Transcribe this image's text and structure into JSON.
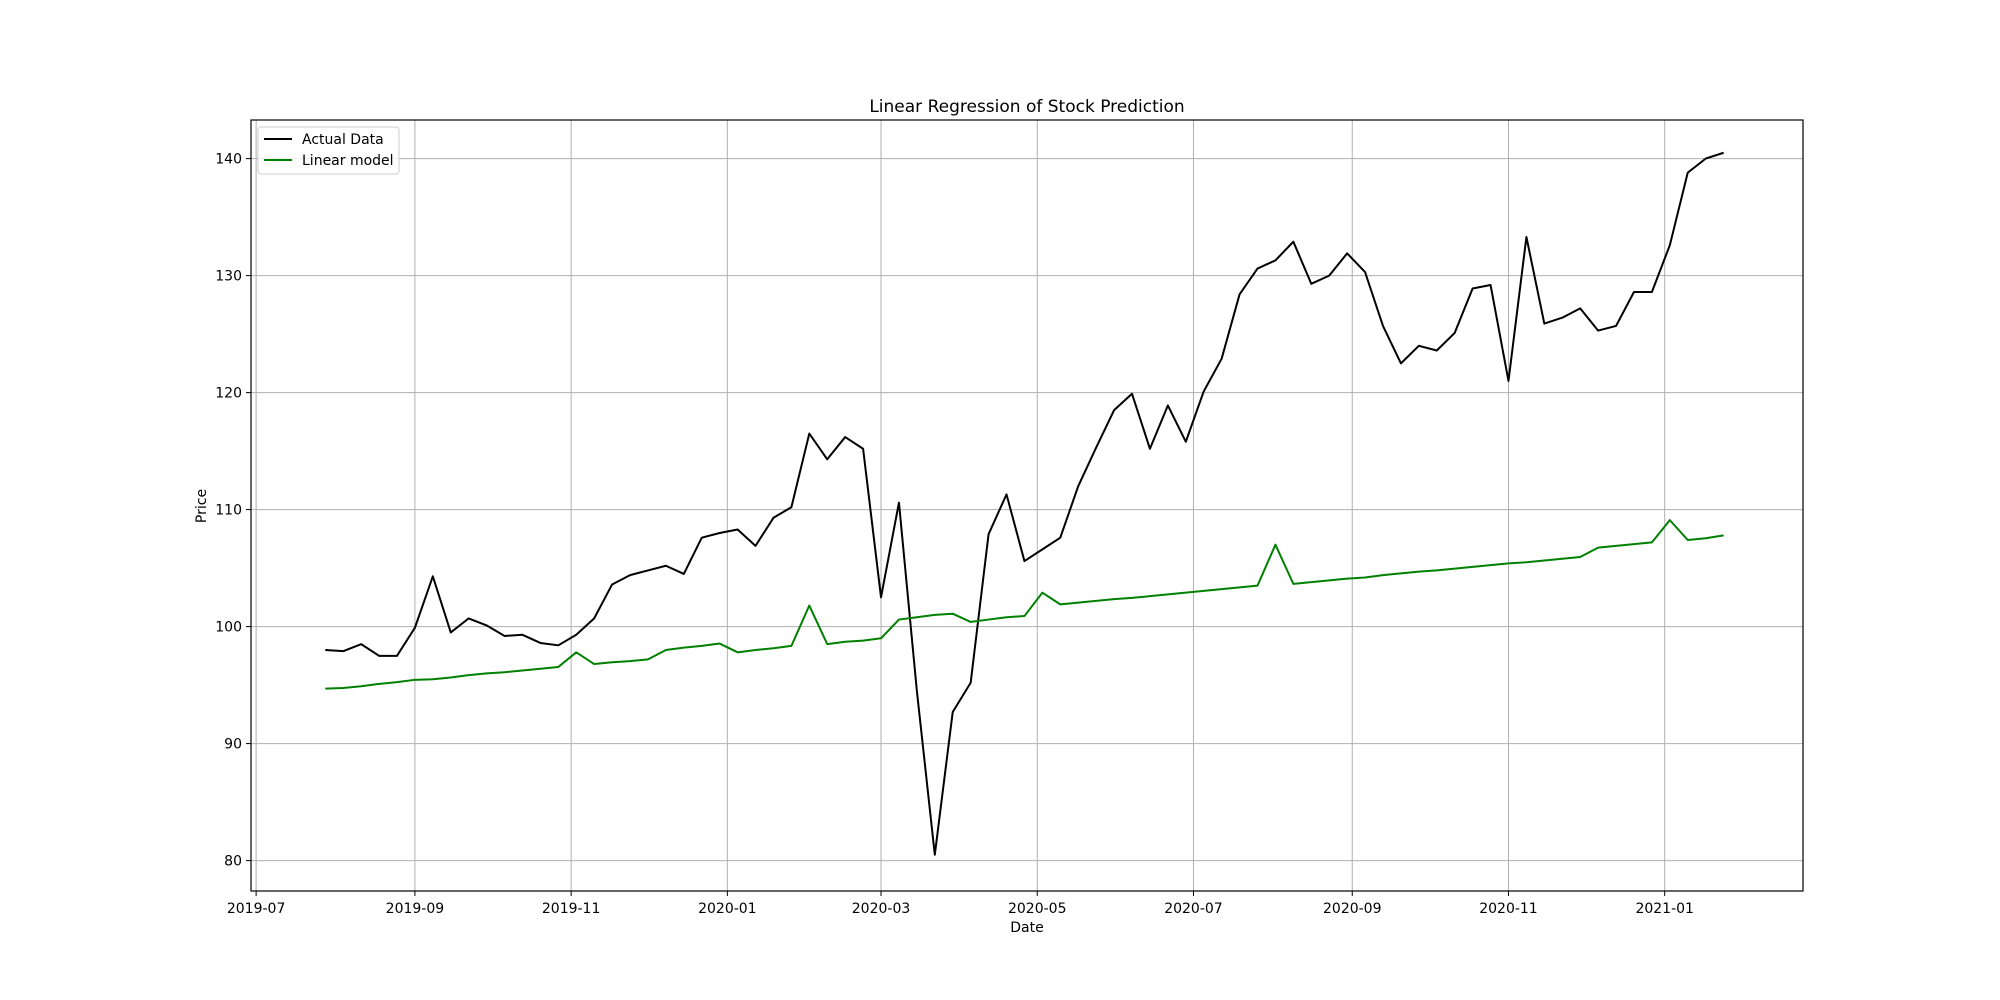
{
  "chart_data": {
    "type": "line",
    "title": "Linear Regression of Stock Prediction",
    "xlabel": "Date",
    "ylabel": "Price",
    "grid": true,
    "legend_placement": "top-left",
    "x_axis_type": "date",
    "xlim": [
      "2019-06-29",
      "2021-02-24"
    ],
    "ylim": [
      77.4,
      143.3
    ],
    "x_ticks": [
      "2019-07-01",
      "2019-09-01",
      "2019-11-01",
      "2020-01-01",
      "2020-03-01",
      "2020-05-01",
      "2020-07-01",
      "2020-09-01",
      "2020-11-01",
      "2021-01-01"
    ],
    "x_tick_labels": [
      "2019-07",
      "2019-09",
      "2019-11",
      "2020-01",
      "2020-03",
      "2020-05",
      "2020-07",
      "2020-09",
      "2020-11",
      "2021-01"
    ],
    "y_ticks": [
      80,
      90,
      100,
      110,
      120,
      130,
      140
    ],
    "y_tick_labels": [
      "80",
      "90",
      "100",
      "110",
      "120",
      "130",
      "140"
    ],
    "x": [
      "2019-07-28",
      "2019-08-04",
      "2019-08-11",
      "2019-08-18",
      "2019-08-25",
      "2019-09-01",
      "2019-09-08",
      "2019-09-15",
      "2019-09-22",
      "2019-09-29",
      "2019-10-06",
      "2019-10-13",
      "2019-10-20",
      "2019-10-27",
      "2019-11-03",
      "2019-11-10",
      "2019-11-17",
      "2019-11-24",
      "2019-12-01",
      "2019-12-08",
      "2019-12-15",
      "2019-12-22",
      "2019-12-29",
      "2020-01-05",
      "2020-01-12",
      "2020-01-19",
      "2020-01-26",
      "2020-02-02",
      "2020-02-09",
      "2020-02-16",
      "2020-02-23",
      "2020-03-01",
      "2020-03-08",
      "2020-03-15",
      "2020-03-22",
      "2020-03-29",
      "2020-04-05",
      "2020-04-12",
      "2020-04-19",
      "2020-04-26",
      "2020-05-03",
      "2020-05-10",
      "2020-05-17",
      "2020-05-24",
      "2020-05-31",
      "2020-06-07",
      "2020-06-14",
      "2020-06-21",
      "2020-06-28",
      "2020-07-05",
      "2020-07-12",
      "2020-07-19",
      "2020-07-26",
      "2020-08-02",
      "2020-08-09",
      "2020-08-16",
      "2020-08-23",
      "2020-08-30",
      "2020-09-06",
      "2020-09-13",
      "2020-09-20",
      "2020-09-27",
      "2020-10-04",
      "2020-10-11",
      "2020-10-18",
      "2020-10-25",
      "2020-11-01",
      "2020-11-08",
      "2020-11-15",
      "2020-11-22",
      "2020-11-29",
      "2020-12-06",
      "2020-12-13",
      "2020-12-20",
      "2020-12-27",
      "2021-01-03",
      "2021-01-10",
      "2021-01-17",
      "2021-01-24"
    ],
    "series": [
      {
        "name": "Actual Data",
        "color": "#000000",
        "values": [
          98.0,
          97.9,
          98.5,
          97.5,
          97.5,
          99.9,
          104.3,
          99.5,
          100.7,
          100.1,
          99.2,
          99.3,
          98.6,
          98.4,
          99.3,
          100.7,
          103.6,
          104.4,
          104.8,
          105.2,
          104.5,
          107.6,
          108.0,
          108.3,
          106.9,
          109.3,
          110.2,
          116.5,
          114.3,
          116.2,
          115.2,
          102.5,
          110.6,
          94.5,
          80.5,
          92.7,
          95.2,
          107.9,
          111.3,
          105.6,
          106.6,
          107.6,
          112.0,
          115.3,
          118.5,
          119.9,
          115.2,
          118.9,
          115.8,
          120.1,
          122.9,
          128.4,
          130.6,
          131.3,
          132.9,
          129.3,
          130.0,
          131.9,
          130.3,
          125.7,
          122.5,
          124.0,
          123.6,
          125.1,
          128.9,
          129.2,
          121.0,
          133.3,
          125.9,
          126.4,
          127.2,
          125.3,
          125.7,
          128.6,
          128.6,
          132.6,
          138.8,
          140.0,
          140.5
        ]
      },
      {
        "name": "Linear model",
        "color": "#008000",
        "values": [
          94.7,
          94.75,
          94.9,
          95.1,
          95.25,
          95.45,
          95.5,
          95.65,
          95.85,
          96.0,
          96.1,
          96.25,
          96.4,
          96.55,
          97.8,
          96.8,
          96.95,
          97.05,
          97.2,
          98.0,
          98.2,
          98.35,
          98.55,
          97.8,
          98.0,
          98.15,
          98.35,
          101.8,
          98.5,
          98.7,
          98.8,
          99.0,
          100.6,
          100.8,
          101.0,
          101.1,
          100.4,
          100.6,
          100.8,
          100.9,
          102.9,
          101.9,
          102.05,
          102.2,
          102.35,
          102.45,
          102.6,
          102.75,
          102.9,
          103.05,
          103.2,
          103.35,
          103.5,
          107.0,
          103.65,
          103.8,
          103.95,
          104.1,
          104.2,
          104.4,
          104.55,
          104.7,
          104.8,
          104.95,
          105.1,
          105.25,
          105.4,
          105.5,
          105.65,
          105.8,
          105.95,
          106.75,
          106.9,
          107.05,
          107.2,
          109.1,
          107.4,
          107.55,
          107.8
        ]
      }
    ]
  }
}
